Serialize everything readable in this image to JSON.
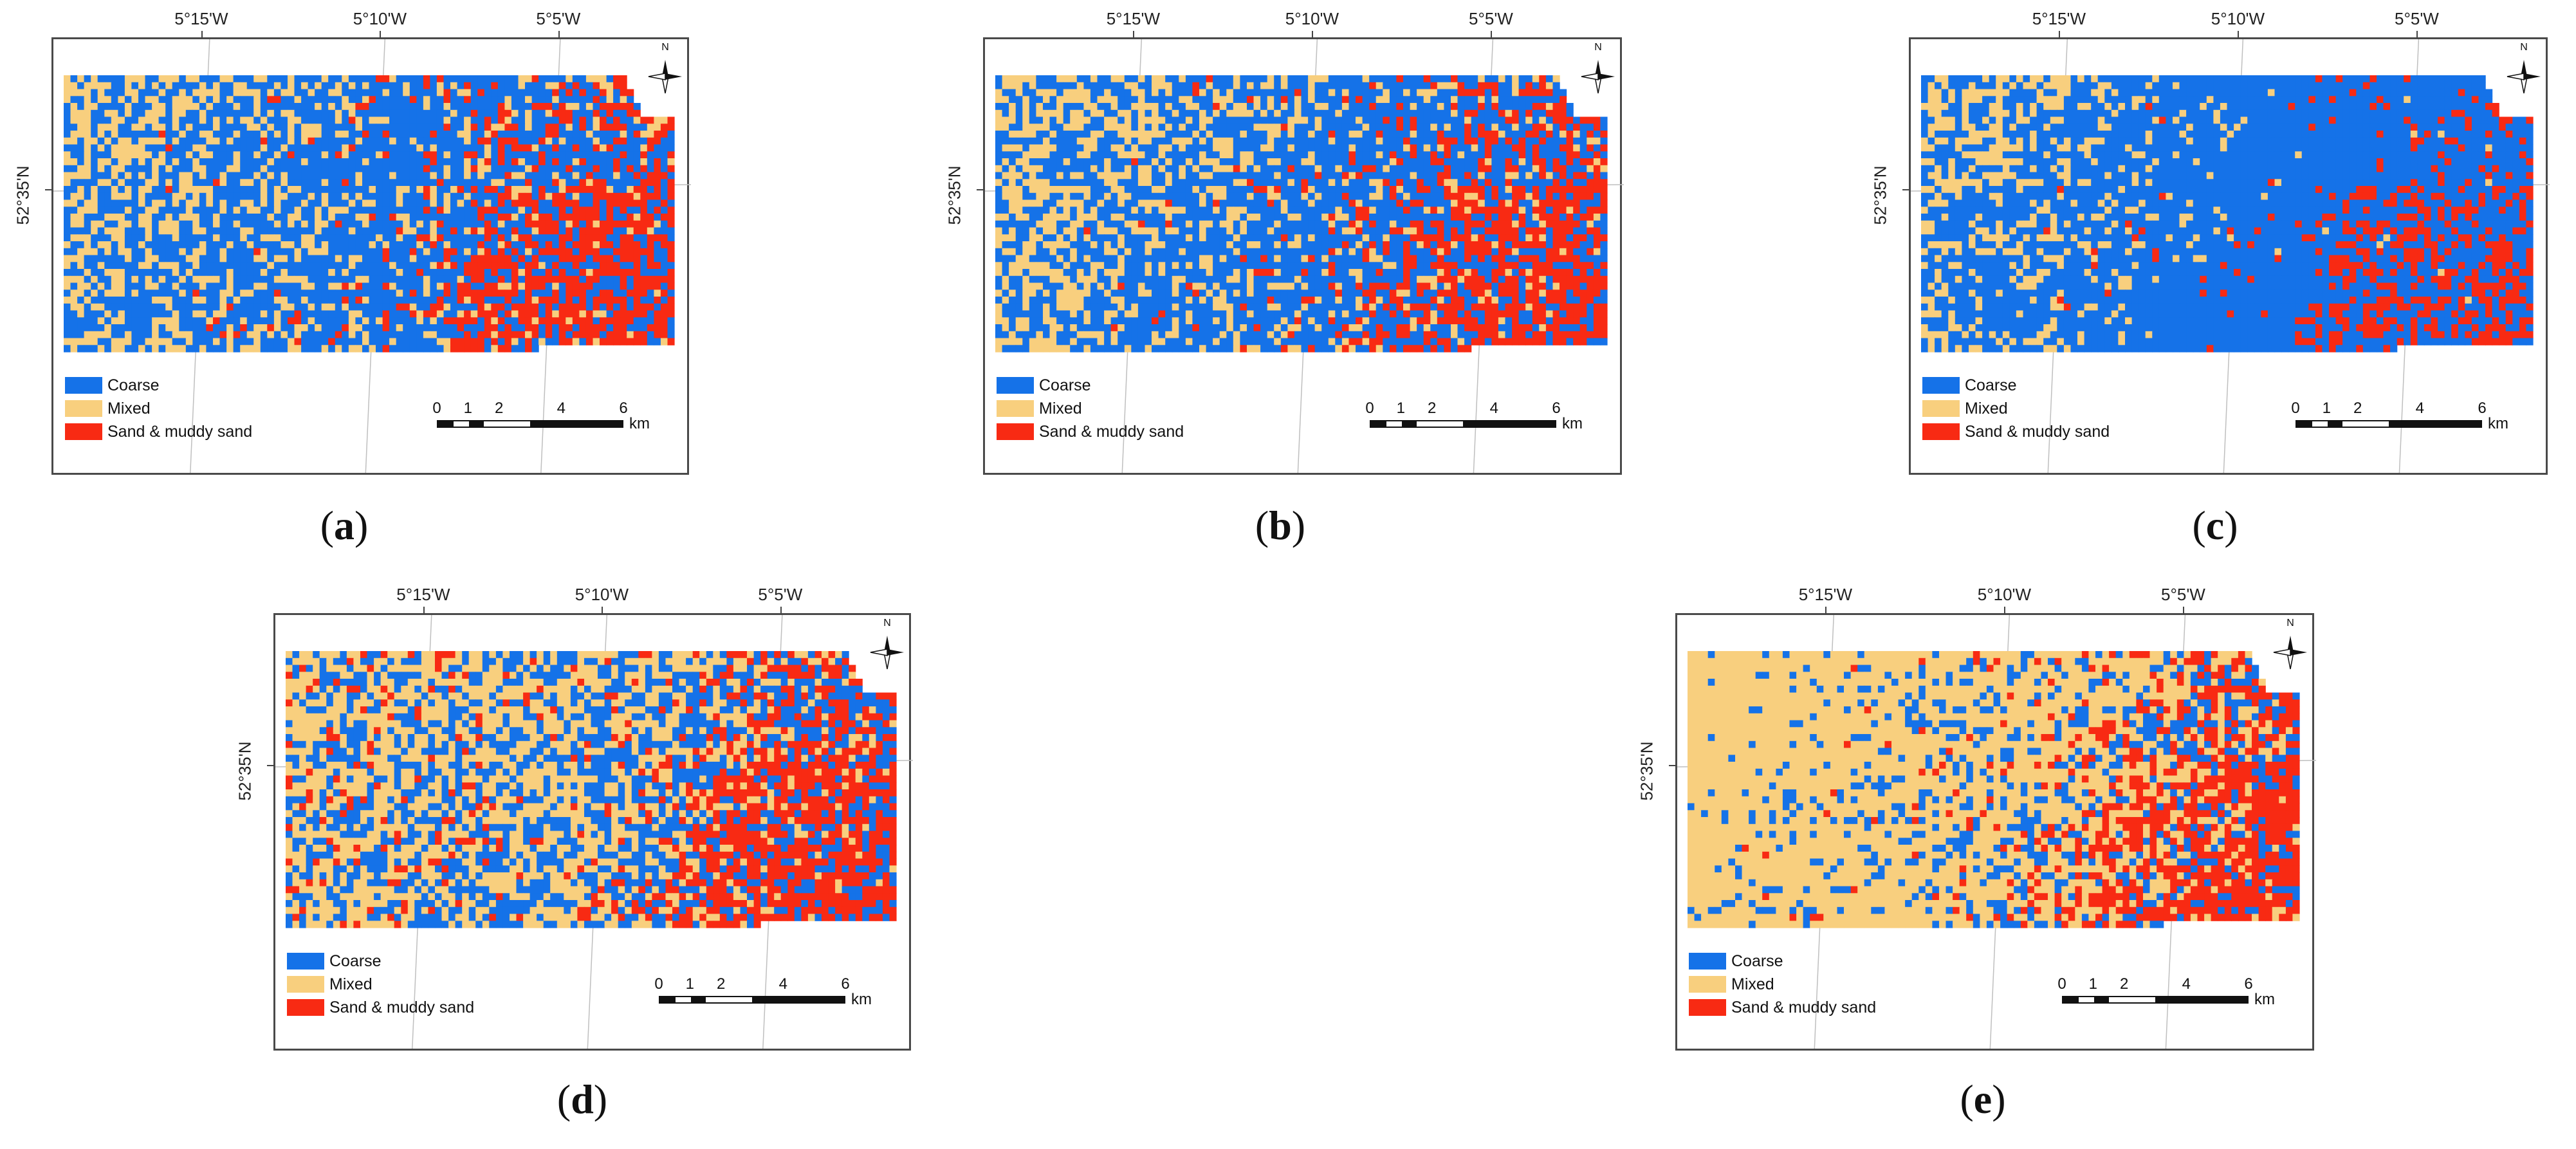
{
  "colors": {
    "coarse": "#1572e8",
    "mixed": "#f8cf7e",
    "sand": "#f82a13",
    "frame": "#4a4a4a",
    "grid": "#bfbfbf"
  },
  "icons": [
    "north-arrow-icon"
  ],
  "common": {
    "lon_labels": [
      "5°15'W",
      "5°10'W",
      "5°5'W"
    ],
    "lat_label": "52°35'N",
    "north_letter": "N",
    "legend": [
      {
        "key": "coarse",
        "label": "Coarse"
      },
      {
        "key": "mixed",
        "label": "Mixed"
      },
      {
        "key": "sand",
        "label": "Sand & muddy sand"
      }
    ],
    "scale_ticks": [
      "0",
      "1",
      "2",
      "4",
      "6"
    ],
    "scale_unit": "km"
  },
  "panels": [
    {
      "id": "a",
      "caption_open": "(",
      "caption_letter": "a",
      "caption_close": ")",
      "class_mix": {
        "west": {
          "coarse": 0.45,
          "mixed": 0.55,
          "sand": 0.0
        },
        "mid": {
          "coarse": 0.75,
          "mixed": 0.2,
          "sand": 0.05
        },
        "east": {
          "coarse": 0.45,
          "mixed": 0.05,
          "sand": 0.5
        }
      }
    },
    {
      "id": "b",
      "caption_open": "(",
      "caption_letter": "b",
      "caption_close": ")",
      "class_mix": {
        "west": {
          "coarse": 0.45,
          "mixed": 0.55,
          "sand": 0.0
        },
        "mid": {
          "coarse": 0.75,
          "mixed": 0.2,
          "sand": 0.05
        },
        "east": {
          "coarse": 0.45,
          "mixed": 0.05,
          "sand": 0.5
        }
      }
    },
    {
      "id": "c",
      "caption_open": "(",
      "caption_letter": "c",
      "caption_close": ")",
      "class_mix": {
        "west": {
          "coarse": 0.55,
          "mixed": 0.45,
          "sand": 0.0
        },
        "mid": {
          "coarse": 0.95,
          "mixed": 0.03,
          "sand": 0.02
        },
        "east": {
          "coarse": 0.8,
          "mixed": 0.0,
          "sand": 0.2
        }
      }
    },
    {
      "id": "d",
      "caption_open": "(",
      "caption_letter": "d",
      "caption_close": ")",
      "class_mix": {
        "west": {
          "coarse": 0.35,
          "mixed": 0.55,
          "sand": 0.1
        },
        "mid": {
          "coarse": 0.45,
          "mixed": 0.5,
          "sand": 0.05
        },
        "east": {
          "coarse": 0.45,
          "mixed": 0.05,
          "sand": 0.5
        }
      }
    },
    {
      "id": "e",
      "caption_open": "(",
      "caption_letter": "e",
      "caption_close": ")",
      "class_mix": {
        "west": {
          "coarse": 0.08,
          "mixed": 0.92,
          "sand": 0.0
        },
        "mid": {
          "coarse": 0.25,
          "mixed": 0.7,
          "sand": 0.05
        },
        "east": {
          "coarse": 0.35,
          "mixed": 0.15,
          "sand": 0.5
        }
      }
    }
  ]
}
